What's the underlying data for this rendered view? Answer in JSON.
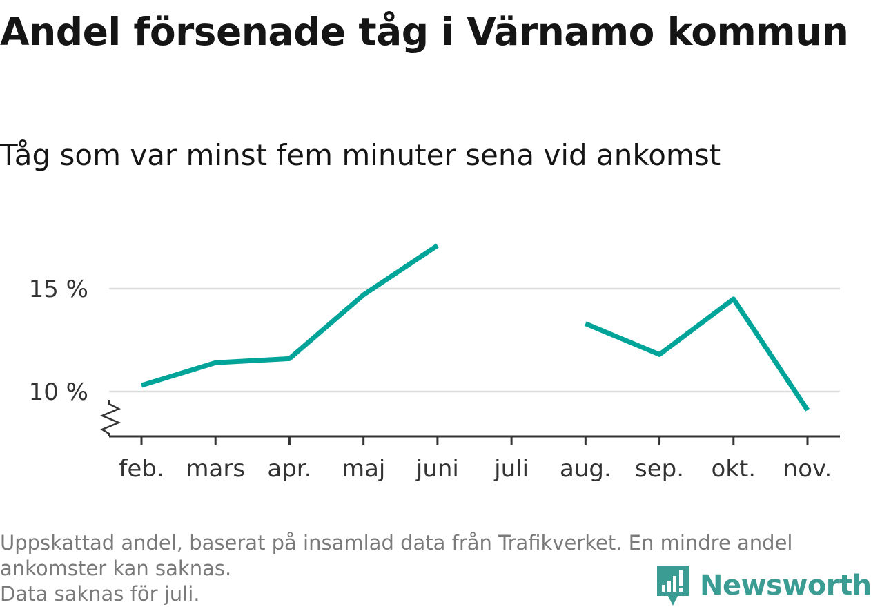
{
  "title": "Andel försenade tåg i Värnamo kommun",
  "subtitle": "Tåg som var minst fem minuter sena vid ankomst",
  "colors": {
    "line": "#00a499",
    "grid": "#dcdcdc",
    "axis": "#333333",
    "brand": "#3a9c92"
  },
  "chart_data": {
    "type": "line",
    "categories": [
      "feb.",
      "mars",
      "apr.",
      "maj",
      "juni",
      "juli",
      "aug.",
      "sep.",
      "okt.",
      "nov."
    ],
    "series": [
      {
        "values": [
          10.3,
          11.4,
          11.6,
          14.7,
          17.1,
          null,
          13.3,
          11.8,
          14.5,
          9.1
        ]
      }
    ],
    "y_ticks": [
      10,
      15
    ],
    "y_tick_labels": [
      "10 %",
      "15 %"
    ],
    "ylim": [
      8,
      19
    ],
    "y_axis_break": true,
    "grid": "horizontal",
    "xlabel": "",
    "ylabel": ""
  },
  "footnote": {
    "line1": "Uppskattad andel, baserat på insamlad data från Trafikverket. En mindre andel",
    "line2": "ankomster kan saknas.",
    "line3": "Data saknas för juli."
  },
  "brand": {
    "name": "Newsworthy",
    "icon": "newsworthy-logo-icon"
  }
}
